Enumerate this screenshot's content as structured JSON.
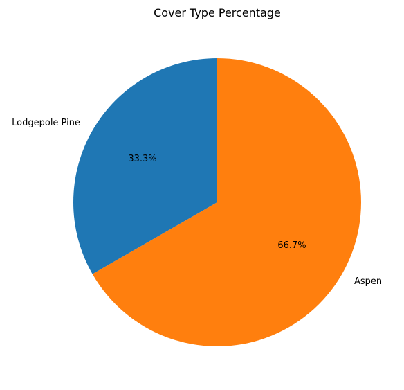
{
  "chart_data": {
    "type": "pie",
    "title": "Cover Type Percentage",
    "categories": [
      "Lodgepole Pine",
      "Aspen"
    ],
    "values": [
      33.3,
      66.7
    ],
    "percent_labels": [
      "33.3%",
      "66.7%"
    ],
    "colors": [
      "#1f77b4",
      "#ff7f0e"
    ],
    "start_angle_deg": 90,
    "direction": "counterclockwise",
    "legend": "none"
  }
}
